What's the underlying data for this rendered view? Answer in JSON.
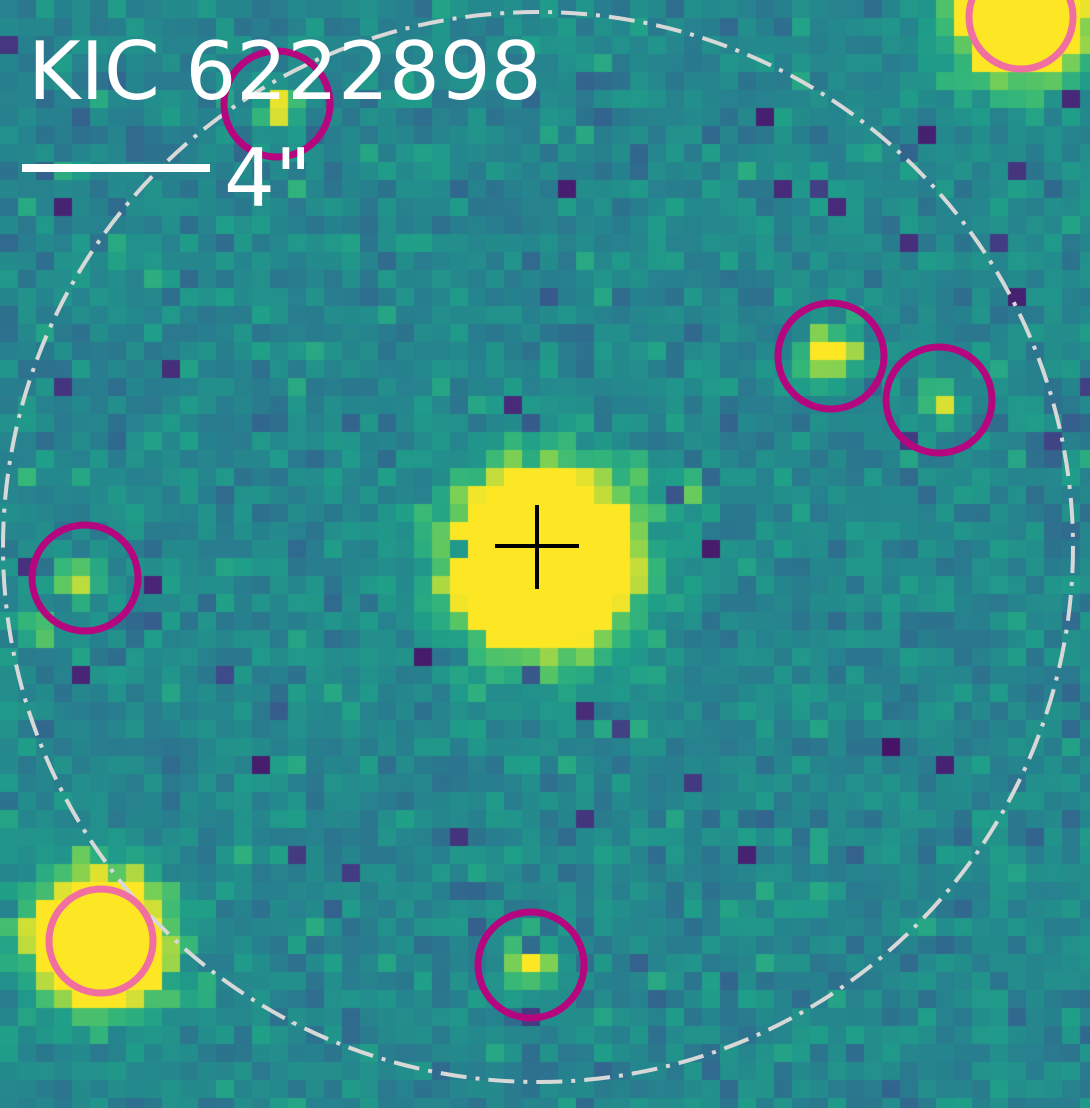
{
  "title": "KIC 6222898",
  "scale_bar": {
    "label": "4\""
  },
  "colors": {
    "field_ring": "#d8d8d8",
    "bright_star_ring": "#f06ea0",
    "faint_star_ring": "#b5067f",
    "target_cross": "#000000",
    "text": "#ffffff",
    "star_core": "#fde725",
    "star_halo": "#7ad151"
  }
}
